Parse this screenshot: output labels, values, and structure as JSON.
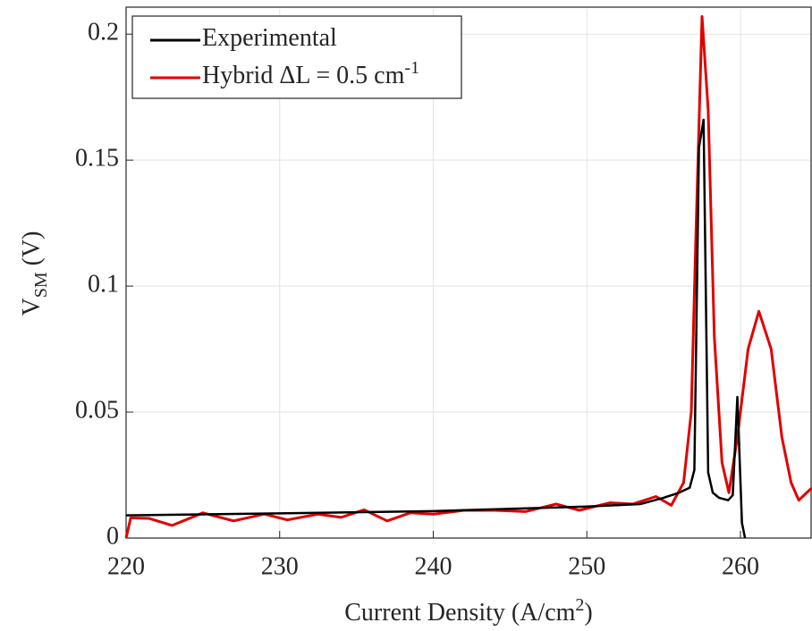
{
  "chart_data": {
    "type": "line",
    "xlabel": [
      "Current Density (A/cm",
      "2",
      ")"
    ],
    "ylabel": [
      "V",
      "SM",
      " (V)"
    ],
    "xlim": [
      220,
      264.66
    ],
    "ylim": [
      0,
      0.21
    ],
    "xticks": [
      220,
      230,
      240,
      250,
      260
    ],
    "yticks": [
      0,
      0.05,
      0.1,
      0.15,
      0.2
    ],
    "grid": true,
    "legend": "upper left",
    "series": [
      {
        "name": "Experimental",
        "color": "#000000",
        "x": [
          220,
          230,
          240,
          250,
          253.5,
          255,
          256,
          256.7,
          257.0,
          257.3,
          257.6,
          257.9,
          258.2,
          258.6,
          259.2,
          259.5,
          259.8,
          260.1,
          260.3
        ],
        "values": [
          0.009,
          0.0098,
          0.0107,
          0.0125,
          0.0135,
          0.016,
          0.018,
          0.02,
          0.027,
          0.155,
          0.166,
          0.026,
          0.018,
          0.016,
          0.015,
          0.017,
          0.056,
          0.006,
          0
        ]
      },
      {
        "name": "Hybrid ΔL = 0.5 cm",
        "name_sup": "-1",
        "color": "#e00000",
        "x": [
          220,
          220.3,
          221.5,
          223,
          225,
          227,
          229,
          230.5,
          232.5,
          234,
          235.5,
          237,
          238.5,
          240,
          242,
          244,
          246,
          248,
          249.5,
          251.5,
          253,
          254.5,
          255.5,
          256.3,
          256.8,
          257.1,
          257.5,
          257.9,
          258.3,
          258.8,
          259.25,
          259.8,
          260.5,
          261.2,
          262.0,
          262.7,
          263.3,
          263.8,
          264.66
        ],
        "values": [
          0,
          0.008,
          0.0078,
          0.005,
          0.01,
          0.0068,
          0.0095,
          0.0072,
          0.0095,
          0.0082,
          0.0112,
          0.0068,
          0.01,
          0.0095,
          0.011,
          0.011,
          0.0105,
          0.0135,
          0.011,
          0.014,
          0.0135,
          0.0165,
          0.013,
          0.022,
          0.05,
          0.12,
          0.207,
          0.17,
          0.08,
          0.03,
          0.018,
          0.04,
          0.075,
          0.09,
          0.075,
          0.04,
          0.022,
          0.015,
          0.02
        ]
      }
    ]
  }
}
